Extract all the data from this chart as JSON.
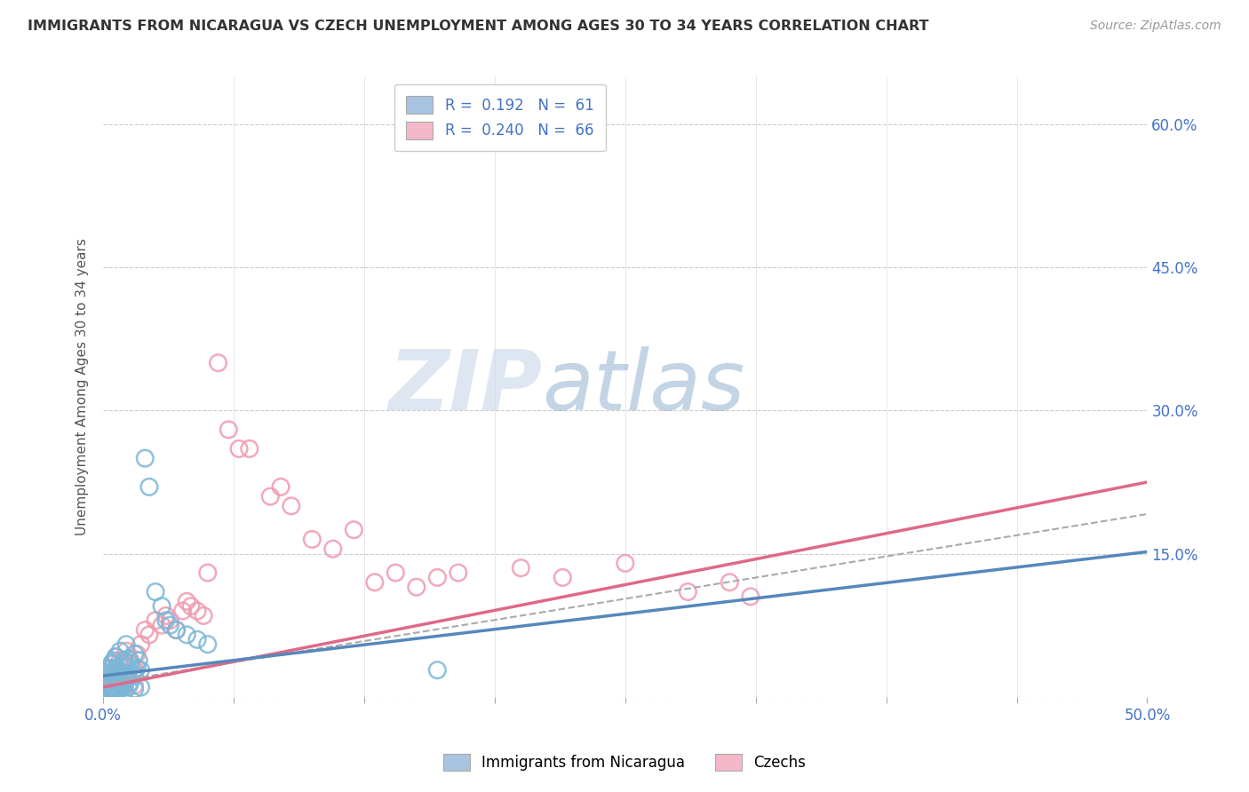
{
  "title": "IMMIGRANTS FROM NICARAGUA VS CZECH UNEMPLOYMENT AMONG AGES 30 TO 34 YEARS CORRELATION CHART",
  "source": "Source: ZipAtlas.com",
  "ylabel_ticks": [
    0.0,
    0.15,
    0.3,
    0.45,
    0.6
  ],
  "ylabel_tick_labels": [
    "",
    "15.0%",
    "30.0%",
    "45.0%",
    "60.0%"
  ],
  "xlim": [
    0.0,
    0.5
  ],
  "ylim": [
    0.0,
    0.65
  ],
  "legend_color1": "#a8c4e0",
  "legend_color2": "#f4b8c8",
  "scatter1_color": "#7ab8d8",
  "scatter2_color": "#f09ab0",
  "line1_color": "#5588bb",
  "line2_color": "#e06888",
  "watermark_zip": "ZIP",
  "watermark_atlas": "atlas",
  "scatter1_x": [
    0.001,
    0.002,
    0.002,
    0.003,
    0.003,
    0.003,
    0.004,
    0.004,
    0.004,
    0.004,
    0.005,
    0.005,
    0.005,
    0.005,
    0.006,
    0.006,
    0.006,
    0.007,
    0.007,
    0.007,
    0.008,
    0.008,
    0.008,
    0.009,
    0.009,
    0.01,
    0.01,
    0.01,
    0.011,
    0.011,
    0.012,
    0.012,
    0.013,
    0.013,
    0.014,
    0.015,
    0.015,
    0.016,
    0.017,
    0.018,
    0.02,
    0.022,
    0.025,
    0.028,
    0.03,
    0.032,
    0.035,
    0.04,
    0.045,
    0.05,
    0.002,
    0.003,
    0.004,
    0.005,
    0.006,
    0.008,
    0.01,
    0.012,
    0.015,
    0.018,
    0.16
  ],
  "scatter1_y": [
    0.02,
    0.015,
    0.025,
    0.01,
    0.018,
    0.03,
    0.008,
    0.022,
    0.035,
    0.012,
    0.025,
    0.038,
    0.018,
    0.008,
    0.03,
    0.02,
    0.042,
    0.015,
    0.028,
    0.01,
    0.032,
    0.018,
    0.048,
    0.022,
    0.01,
    0.038,
    0.025,
    0.012,
    0.055,
    0.018,
    0.02,
    0.04,
    0.015,
    0.035,
    0.025,
    0.022,
    0.045,
    0.03,
    0.038,
    0.028,
    0.25,
    0.22,
    0.11,
    0.095,
    0.08,
    0.075,
    0.07,
    0.065,
    0.06,
    0.055,
    0.005,
    0.008,
    0.005,
    0.012,
    0.005,
    0.008,
    0.005,
    0.01,
    0.008,
    0.01,
    0.028
  ],
  "scatter2_x": [
    0.001,
    0.002,
    0.002,
    0.003,
    0.003,
    0.003,
    0.004,
    0.004,
    0.005,
    0.005,
    0.005,
    0.006,
    0.006,
    0.007,
    0.007,
    0.008,
    0.008,
    0.009,
    0.01,
    0.01,
    0.011,
    0.012,
    0.013,
    0.014,
    0.015,
    0.016,
    0.018,
    0.02,
    0.022,
    0.025,
    0.028,
    0.03,
    0.032,
    0.035,
    0.038,
    0.04,
    0.042,
    0.045,
    0.048,
    0.05,
    0.055,
    0.06,
    0.065,
    0.07,
    0.08,
    0.085,
    0.09,
    0.1,
    0.11,
    0.12,
    0.13,
    0.14,
    0.15,
    0.16,
    0.17,
    0.2,
    0.22,
    0.25,
    0.28,
    0.3,
    0.003,
    0.004,
    0.005,
    0.01,
    0.015,
    0.31
  ],
  "scatter2_y": [
    0.015,
    0.008,
    0.02,
    0.005,
    0.015,
    0.025,
    0.01,
    0.03,
    0.018,
    0.035,
    0.008,
    0.025,
    0.042,
    0.015,
    0.022,
    0.038,
    0.012,
    0.02,
    0.035,
    0.015,
    0.048,
    0.022,
    0.038,
    0.032,
    0.028,
    0.045,
    0.055,
    0.07,
    0.065,
    0.08,
    0.075,
    0.085,
    0.08,
    0.07,
    0.09,
    0.1,
    0.095,
    0.09,
    0.085,
    0.13,
    0.35,
    0.28,
    0.26,
    0.26,
    0.21,
    0.22,
    0.2,
    0.165,
    0.155,
    0.175,
    0.12,
    0.13,
    0.115,
    0.125,
    0.13,
    0.135,
    0.125,
    0.14,
    0.11,
    0.12,
    0.005,
    0.008,
    0.008,
    0.01,
    0.012,
    0.105
  ],
  "line1_intercept": 0.022,
  "line1_slope": 0.26,
  "line2_intercept": 0.01,
  "line2_slope": 0.43,
  "dash_intercept": 0.014,
  "dash_slope": 0.355
}
